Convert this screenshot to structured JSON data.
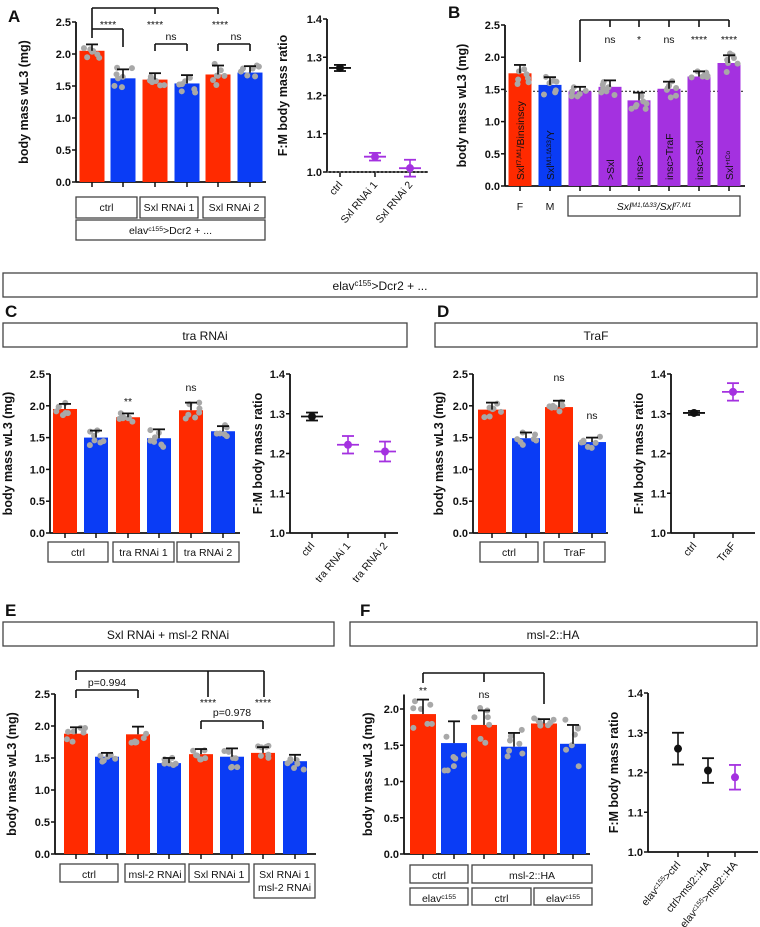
{
  "colors": {
    "female": "#ff2a00",
    "male": "#0a3cf5",
    "mutant": "#a431e0",
    "dots": "#a8a8a8",
    "ratio_ctrl": "#111111",
    "ratio_exp": "#a431e0"
  },
  "panel_letters": {
    "A": "A",
    "B": "B",
    "C": "C",
    "D": "D",
    "E": "E",
    "F": "F"
  },
  "headers": {
    "elav_dcr2": [
      {
        "t": "elav"
      },
      {
        "sup": "c155"
      },
      {
        "t": ">Dcr2 + ..."
      }
    ],
    "tra_rnai": "tra RNAi",
    "traf": "TraF",
    "sxl_msl2": "Sxl RNAi + msl-2 RNAi",
    "msl2_ha": "msl-2::HA"
  },
  "chart_data": [
    {
      "id": "A_bar",
      "type": "bar",
      "ylabel": "body mass wL3 (mg)",
      "ylim": [
        0,
        2.5
      ],
      "yticks": [
        "0.0",
        "0.5",
        "1.0",
        "1.5",
        "2.0",
        "2.5"
      ],
      "bars": [
        {
          "value": 2.05,
          "err": 0.1,
          "sex": "female"
        },
        {
          "value": 1.62,
          "err": 0.14,
          "sex": "male"
        },
        {
          "value": 1.6,
          "err": 0.1,
          "sex": "female"
        },
        {
          "value": 1.54,
          "err": 0.13,
          "sex": "male"
        },
        {
          "value": 1.68,
          "err": 0.14,
          "sex": "female"
        },
        {
          "value": 1.71,
          "err": 0.1,
          "sex": "male"
        }
      ],
      "groups": [
        [
          [
            {
              "t": "ctrl"
            }
          ],
          [
            {
              "t": "Sxl RNAi 1"
            }
          ],
          [
            {
              "t": "Sxl RNAi 2"
            }
          ]
        ],
        [
          [
            {
              "t": "elav"
            },
            {
              "sup": "c155"
            },
            {
              "t": ">Dcr2 + ..."
            }
          ]
        ]
      ],
      "annotations": [
        "****",
        "****",
        "****",
        "ns",
        "ns"
      ]
    },
    {
      "id": "A_ratio",
      "type": "scatter",
      "ylabel": "F:M body mass ratio",
      "ylim": [
        1.0,
        1.4
      ],
      "yticks": [
        "1.0",
        "1.1",
        "1.2",
        "1.3",
        "1.4"
      ],
      "reference_line": 1.0,
      "categories": [
        "ctrl",
        "Sxl RNAi 1",
        "Sxl RNAi 2"
      ],
      "points": [
        {
          "mean": 1.272,
          "err": 0.008,
          "group": "ctrl"
        },
        {
          "mean": 1.04,
          "err": 0.01,
          "group": "exp"
        },
        {
          "mean": 1.01,
          "err": 0.022,
          "group": "exp"
        }
      ]
    },
    {
      "id": "B_bar",
      "type": "bar",
      "ylabel": "body mass wL3 (mg)",
      "ylim": [
        0,
        2.5
      ],
      "yticks": [
        "0.0",
        "0.5",
        "1.0",
        "1.5",
        "2.0",
        "2.5"
      ],
      "reference_line": 1.47,
      "bars": [
        {
          "value": 1.75,
          "err": 0.13,
          "sex": "female",
          "inlabel": [
            {
              "t": "Sxl"
            },
            {
              "sup": "f7,M1"
            },
            {
              "t": "/Binsinscy"
            }
          ]
        },
        {
          "value": 1.57,
          "err": 0.12,
          "sex": "male",
          "inlabel": [
            {
              "t": "Sxl"
            },
            {
              "sup": "M1,fΔ33"
            },
            {
              "t": "/Y"
            }
          ]
        },
        {
          "value": 1.47,
          "err": 0.07,
          "sex": "mutant",
          "inlabel": []
        },
        {
          "value": 1.54,
          "err": 0.1,
          "sex": "mutant",
          "inlabel": [
            {
              "t": ">Sxl"
            }
          ]
        },
        {
          "value": 1.33,
          "err": 0.12,
          "sex": "mutant",
          "inlabel": [
            {
              "t": "insc>"
            }
          ]
        },
        {
          "value": 1.51,
          "err": 0.11,
          "sex": "mutant",
          "inlabel": [
            {
              "t": "insc>TraF"
            }
          ]
        },
        {
          "value": 1.7,
          "err": 0.08,
          "sex": "mutant",
          "inlabel": [
            {
              "t": "insc>Sxl"
            }
          ]
        },
        {
          "value": 1.91,
          "err": 0.12,
          "sex": "mutant",
          "inlabel": [
            {
              "t": "Sxl"
            },
            {
              "sup": "+tCo"
            }
          ]
        }
      ],
      "sex_labels": [
        "F",
        "M"
      ],
      "genotype_box": [
        {
          "t": "Sxl"
        },
        {
          "sup": "M1,fΔ33"
        },
        {
          "t": "/Sxl"
        },
        {
          "sup": "f7,M1"
        }
      ],
      "annotations": [
        "ns",
        "*",
        "ns",
        "****",
        "****"
      ]
    },
    {
      "id": "C_bar",
      "type": "bar",
      "ylabel": "body mass wL3 (mg)",
      "ylim": [
        0,
        2.5
      ],
      "yticks": [
        "0.0",
        "0.5",
        "1.0",
        "1.5",
        "2.0",
        "2.5"
      ],
      "bars": [
        {
          "value": 1.95,
          "err": 0.08,
          "sex": "female"
        },
        {
          "value": 1.5,
          "err": 0.11,
          "sex": "male"
        },
        {
          "value": 1.82,
          "err": 0.06,
          "sex": "female"
        },
        {
          "value": 1.49,
          "err": 0.14,
          "sex": "male"
        },
        {
          "value": 1.93,
          "err": 0.12,
          "sex": "female"
        },
        {
          "value": 1.6,
          "err": 0.08,
          "sex": "male"
        }
      ],
      "groups": [
        [
          [
            {
              "t": "ctrl"
            }
          ],
          [
            {
              "t": "tra RNAi 1"
            }
          ],
          [
            {
              "t": "tra RNAi 2"
            }
          ]
        ]
      ],
      "annotations": [
        "**",
        "ns"
      ]
    },
    {
      "id": "C_ratio",
      "type": "scatter",
      "ylabel": "F:M body mass ratio",
      "ylim": [
        1.0,
        1.4
      ],
      "yticks": [
        "1.0",
        "1.1",
        "1.2",
        "1.3",
        "1.4"
      ],
      "categories": [
        "ctrl",
        "tra RNAi 1",
        "tra RNAi 2"
      ],
      "points": [
        {
          "mean": 1.293,
          "err": 0.01,
          "group": "ctrl"
        },
        {
          "mean": 1.222,
          "err": 0.022,
          "group": "exp"
        },
        {
          "mean": 1.205,
          "err": 0.025,
          "group": "exp"
        }
      ]
    },
    {
      "id": "D_bar",
      "type": "bar",
      "ylabel": "body mass wL3  (mg)",
      "ylim": [
        0,
        2.5
      ],
      "yticks": [
        "0.0",
        "0.5",
        "1.0",
        "1.5",
        "2.0",
        "2.5"
      ],
      "bars": [
        {
          "value": 1.94,
          "err": 0.11,
          "sex": "female"
        },
        {
          "value": 1.49,
          "err": 0.09,
          "sex": "male"
        },
        {
          "value": 1.98,
          "err": 0.1,
          "sex": "female"
        },
        {
          "value": 1.43,
          "err": 0.07,
          "sex": "male"
        }
      ],
      "groups": [
        [
          [
            {
              "t": "ctrl"
            }
          ],
          [
            {
              "t": "TraF"
            }
          ]
        ]
      ],
      "annotations": [
        "ns",
        "ns"
      ]
    },
    {
      "id": "D_ratio",
      "type": "scatter",
      "ylabel": "F:M body mass ratio",
      "ylim": [
        1.0,
        1.4
      ],
      "yticks": [
        "1.0",
        "1.1",
        "1.2",
        "1.3",
        "1.4"
      ],
      "categories": [
        "ctrl",
        "TraF"
      ],
      "points": [
        {
          "mean": 1.302,
          "err": 0.005,
          "group": "ctrl"
        },
        {
          "mean": 1.355,
          "err": 0.022,
          "group": "exp"
        }
      ]
    },
    {
      "id": "E_bar",
      "type": "bar",
      "ylabel": "body mass wL3 (mg)",
      "ylim": [
        0,
        2.5
      ],
      "yticks": [
        "0.0",
        "0.5",
        "1.0",
        "1.5",
        "2.0",
        "2.5"
      ],
      "bars": [
        {
          "value": 1.88,
          "err": 0.1,
          "sex": "female"
        },
        {
          "value": 1.52,
          "err": 0.06,
          "sex": "male"
        },
        {
          "value": 1.87,
          "err": 0.12,
          "sex": "female"
        },
        {
          "value": 1.42,
          "err": 0.08,
          "sex": "male"
        },
        {
          "value": 1.56,
          "err": 0.08,
          "sex": "female"
        },
        {
          "value": 1.52,
          "err": 0.13,
          "sex": "male"
        },
        {
          "value": 1.58,
          "err": 0.09,
          "sex": "female"
        },
        {
          "value": 1.45,
          "err": 0.1,
          "sex": "male"
        }
      ],
      "groups": [
        [
          [
            {
              "t": "ctrl"
            }
          ],
          [
            {
              "t": "msl-2 RNAi"
            }
          ],
          [
            {
              "t": "Sxl RNAi 1"
            }
          ],
          [
            {
              "t": "Sxl RNAi 1"
            },
            {
              "br": "msl-2 RNAi"
            }
          ]
        ]
      ],
      "annotations": [
        "p=0.994",
        "****",
        "****",
        "p=0.978"
      ]
    },
    {
      "id": "F_bar",
      "type": "bar",
      "ylabel": "body mass wL3 (mg)",
      "ylim": [
        0,
        2.2
      ],
      "yticks": [
        "0.0",
        "0.5",
        "1.0",
        "1.5",
        "2.0"
      ],
      "bars": [
        {
          "value": 1.93,
          "err": 0.2,
          "sex": "female"
        },
        {
          "value": 1.53,
          "err": 0.3,
          "sex": "male"
        },
        {
          "value": 1.78,
          "err": 0.2,
          "sex": "female"
        },
        {
          "value": 1.48,
          "err": 0.19,
          "sex": "male"
        },
        {
          "value": 1.8,
          "err": 0.06,
          "sex": "female"
        },
        {
          "value": 1.52,
          "err": 0.26,
          "sex": "male"
        }
      ],
      "groups": [
        [
          [
            {
              "t": "ctrl"
            }
          ],
          [
            {
              "t": "msl-2::HA"
            }
          ]
        ],
        [
          [
            {
              "t": "elav"
            },
            {
              "sup": "c155"
            }
          ],
          [
            {
              "t": "ctrl"
            }
          ],
          [
            {
              "t": "elav"
            },
            {
              "sup": "c155"
            }
          ]
        ]
      ],
      "annotations": [
        "**",
        "ns"
      ]
    },
    {
      "id": "F_ratio",
      "type": "scatter",
      "ylabel": "F:M body mass ratio",
      "ylim": [
        1.0,
        1.4
      ],
      "yticks": [
        "1.0",
        "1.1",
        "1.2",
        "1.3",
        "1.4"
      ],
      "categories": [
        [
          {
            "t": "elav"
          },
          {
            "sup": "c155"
          },
          {
            "t": ">ctrl"
          }
        ],
        [
          {
            "t": "ctrl>msl2::HA"
          }
        ],
        [
          {
            "t": "elav"
          },
          {
            "sup": "c155"
          },
          {
            "t": ">msl2::HA"
          }
        ]
      ],
      "points": [
        {
          "mean": 1.26,
          "err": 0.04,
          "group": "ctrl"
        },
        {
          "mean": 1.205,
          "err": 0.031,
          "group": "ctrl"
        },
        {
          "mean": 1.188,
          "err": 0.031,
          "group": "exp"
        }
      ]
    }
  ]
}
